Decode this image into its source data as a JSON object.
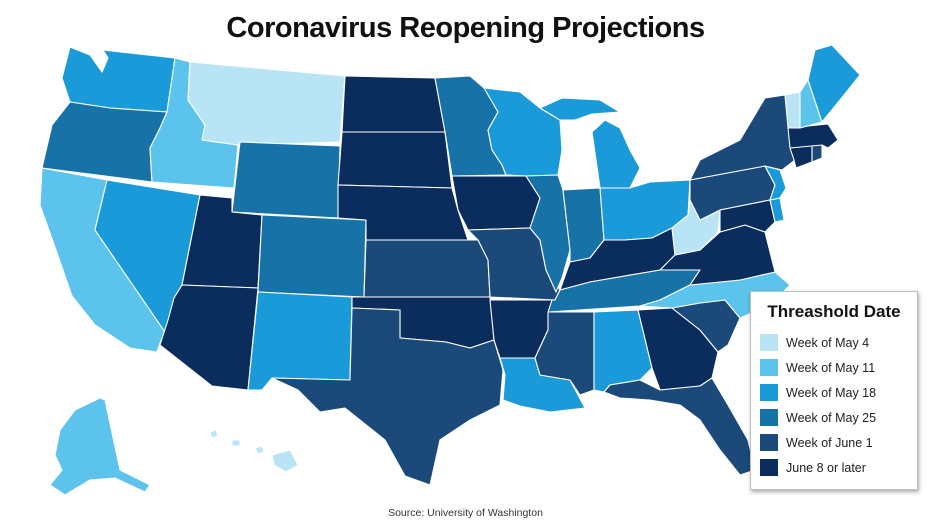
{
  "title": "Coronavirus Reopening Projections",
  "source": "Source: University of Washington",
  "legend": {
    "title": "Threashold Date",
    "items": [
      {
        "label": "Week of May 4",
        "color": "#b8e4f5"
      },
      {
        "label": "Week of May 11",
        "color": "#5cc4ec"
      },
      {
        "label": "Week of May 18",
        "color": "#1a9ad9"
      },
      {
        "label": "Week of May 25",
        "color": "#1772a8"
      },
      {
        "label": "Week of June 1",
        "color": "#1b4a7a"
      },
      {
        "label": "June 8 or later",
        "color": "#0b2d5e"
      }
    ]
  },
  "states": {
    "WA": 2,
    "OR": 3,
    "CA": 1,
    "ID": 1,
    "NV": 2,
    "MT": 0,
    "WY": 3,
    "UT": 5,
    "AZ": 5,
    "CO": 3,
    "NM": 2,
    "ND": 5,
    "SD": 5,
    "NE": 5,
    "KS": 4,
    "OK": 5,
    "TX": 4,
    "MN": 3,
    "IA": 5,
    "MO": 4,
    "AR": 5,
    "LA": 2,
    "WI": 2,
    "IL": 3,
    "MI": 2,
    "IN": 3,
    "OH": 2,
    "KY": 5,
    "TN": 3,
    "MS": 4,
    "AL": 2,
    "GA": 5,
    "FL": 4,
    "SC": 4,
    "NC": 1,
    "VA": 5,
    "WV": 0,
    "MD": 5,
    "DE": 2,
    "NJ": 2,
    "PA": 4,
    "NY": 4,
    "CT": 5,
    "RI": 4,
    "MA": 5,
    "VT": 0,
    "NH": 1,
    "ME": 2,
    "AK": 1,
    "HI": 0
  }
}
